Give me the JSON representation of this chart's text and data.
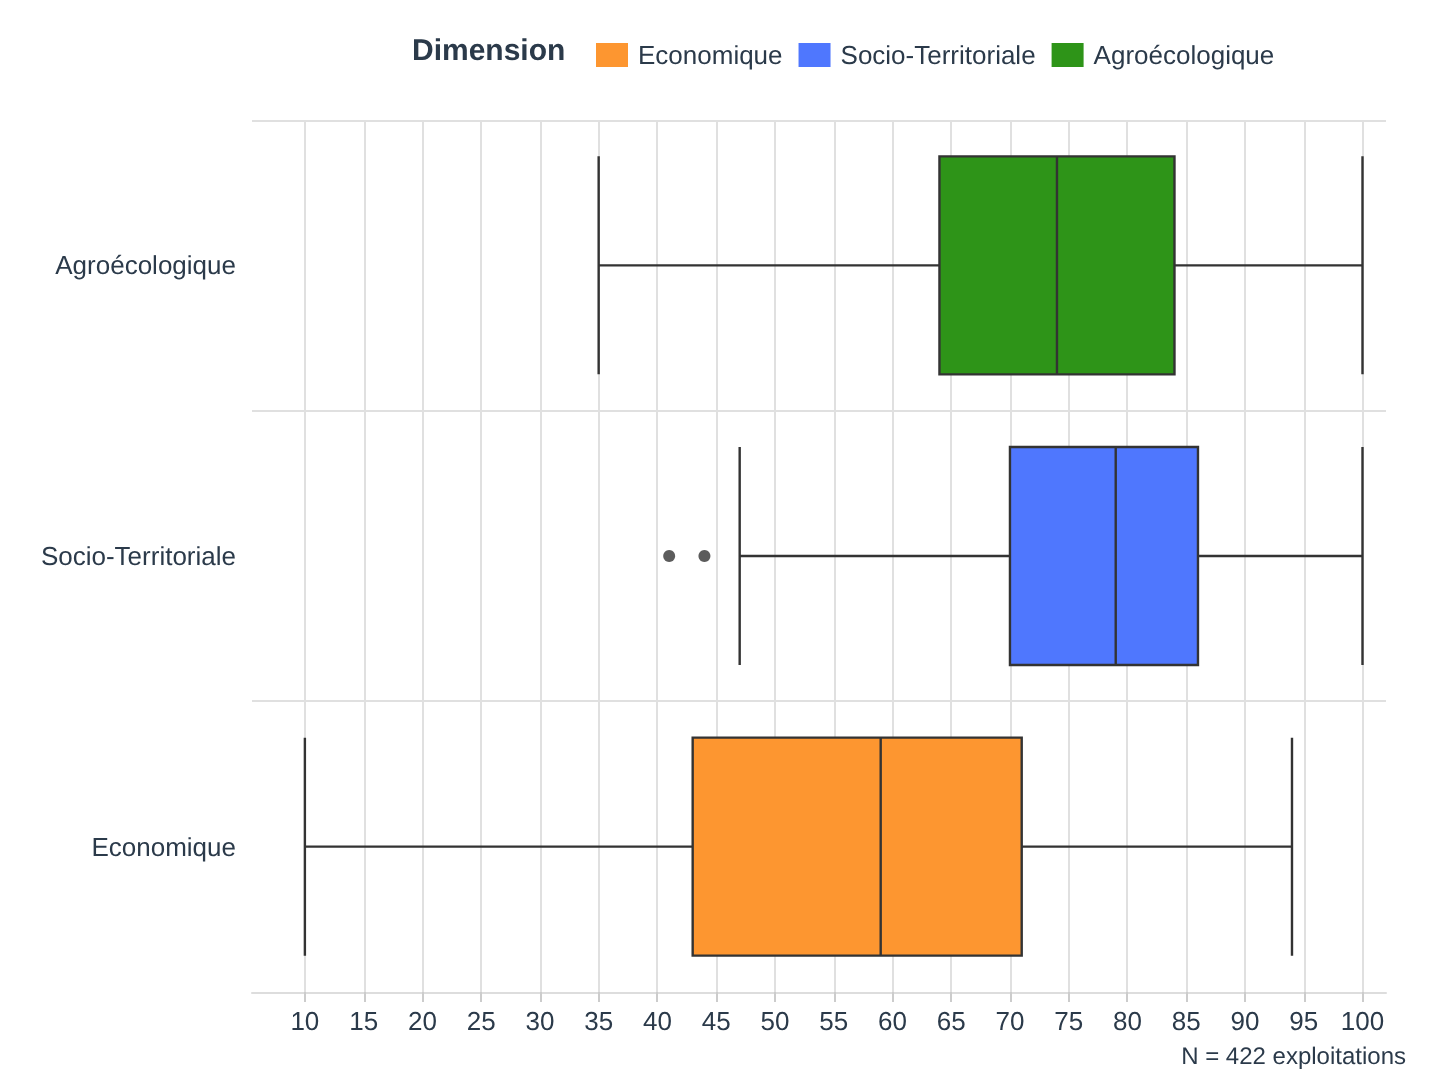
{
  "chart_data": {
    "type": "box",
    "orientation": "horizontal",
    "categories": [
      "Agroécologique",
      "Socio-Territoriale",
      "Economique"
    ],
    "series": [
      {
        "name": "Economique",
        "color": "#fd9630",
        "boxes": [
          null,
          null,
          {
            "low": 10,
            "q1": 43,
            "median": 59,
            "q3": 71,
            "high": 94
          }
        ]
      },
      {
        "name": "Socio-Territoriale",
        "color": "#4f77fe",
        "boxes": [
          null,
          {
            "low": 47,
            "q1": 70,
            "median": 79,
            "q3": 86,
            "high": 100,
            "outliers": [
              41,
              44
            ]
          },
          null
        ]
      },
      {
        "name": "Agroécologique",
        "color": "#2e9418",
        "boxes": [
          {
            "low": 35,
            "q1": 64,
            "median": 74,
            "q3": 84,
            "high": 100
          },
          null,
          null
        ]
      }
    ],
    "legend_title": "Dimension",
    "legend": "top",
    "xlim": [
      5.5,
      102
    ],
    "xticks": [
      10,
      15,
      20,
      25,
      30,
      35,
      40,
      45,
      50,
      55,
      60,
      65,
      70,
      75,
      80,
      85,
      90,
      95,
      100
    ],
    "grid": true,
    "annotations": [
      "N = 422 exploitations"
    ]
  }
}
